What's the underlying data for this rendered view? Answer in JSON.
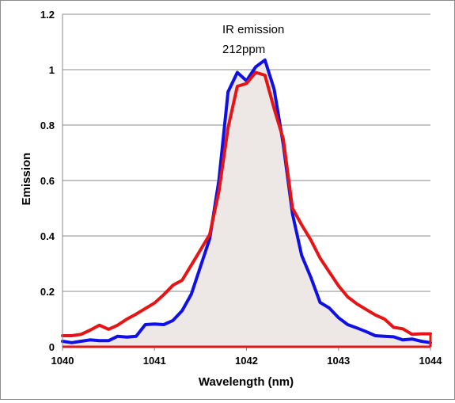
{
  "chart_data": {
    "type": "line",
    "title": "",
    "annotation": [
      "IR emission",
      "212ppm"
    ],
    "xlabel": "Wavelength (nm)",
    "ylabel": "Emission",
    "xlim": [
      1040,
      1044
    ],
    "ylim": [
      0,
      1.2
    ],
    "x_ticks": [
      "1040",
      "1041",
      "1042",
      "1043",
      "1044"
    ],
    "y_ticks": [
      "0",
      "0.2",
      "0.4",
      "0.6",
      "0.8",
      "1",
      "1.2"
    ],
    "grid": "horizontal",
    "legend": "none",
    "series": [
      {
        "color": "#1010e6",
        "filled": true,
        "fill_color": "#ede8e6",
        "points": [
          [
            1040.0,
            0.02
          ],
          [
            1040.1,
            0.015
          ],
          [
            1040.2,
            0.02
          ],
          [
            1040.3,
            0.025
          ],
          [
            1040.4,
            0.022
          ],
          [
            1040.5,
            0.022
          ],
          [
            1040.6,
            0.038
          ],
          [
            1040.7,
            0.035
          ],
          [
            1040.8,
            0.038
          ],
          [
            1040.9,
            0.08
          ],
          [
            1041.0,
            0.082
          ],
          [
            1041.1,
            0.08
          ],
          [
            1041.2,
            0.095
          ],
          [
            1041.3,
            0.13
          ],
          [
            1041.4,
            0.19
          ],
          [
            1041.5,
            0.29
          ],
          [
            1041.6,
            0.39
          ],
          [
            1041.7,
            0.6
          ],
          [
            1041.8,
            0.92
          ],
          [
            1041.9,
            0.99
          ],
          [
            1042.0,
            0.96
          ],
          [
            1042.1,
            1.01
          ],
          [
            1042.2,
            1.035
          ],
          [
            1042.3,
            0.93
          ],
          [
            1042.4,
            0.73
          ],
          [
            1042.5,
            0.48
          ],
          [
            1042.6,
            0.33
          ],
          [
            1042.7,
            0.25
          ],
          [
            1042.8,
            0.16
          ],
          [
            1042.9,
            0.14
          ],
          [
            1043.0,
            0.105
          ],
          [
            1043.1,
            0.08
          ],
          [
            1043.2,
            0.068
          ],
          [
            1043.3,
            0.055
          ],
          [
            1043.4,
            0.04
          ],
          [
            1043.5,
            0.038
          ],
          [
            1043.6,
            0.036
          ],
          [
            1043.7,
            0.025
          ],
          [
            1043.8,
            0.028
          ],
          [
            1043.9,
            0.02
          ],
          [
            1044.0,
            0.015
          ]
        ]
      },
      {
        "color": "#e61414",
        "filled": false,
        "points": [
          [
            1040.0,
            0.04
          ],
          [
            1040.1,
            0.04
          ],
          [
            1040.2,
            0.045
          ],
          [
            1040.3,
            0.06
          ],
          [
            1040.4,
            0.078
          ],
          [
            1040.5,
            0.063
          ],
          [
            1040.6,
            0.078
          ],
          [
            1040.7,
            0.1
          ],
          [
            1040.8,
            0.118
          ],
          [
            1040.9,
            0.138
          ],
          [
            1041.0,
            0.158
          ],
          [
            1041.1,
            0.188
          ],
          [
            1041.2,
            0.222
          ],
          [
            1041.3,
            0.24
          ],
          [
            1041.4,
            0.295
          ],
          [
            1041.5,
            0.35
          ],
          [
            1041.6,
            0.405
          ],
          [
            1041.7,
            0.56
          ],
          [
            1041.8,
            0.79
          ],
          [
            1041.9,
            0.94
          ],
          [
            1042.0,
            0.95
          ],
          [
            1042.1,
            0.99
          ],
          [
            1042.2,
            0.98
          ],
          [
            1042.3,
            0.86
          ],
          [
            1042.4,
            0.75
          ],
          [
            1042.5,
            0.5
          ],
          [
            1042.6,
            0.44
          ],
          [
            1042.7,
            0.385
          ],
          [
            1042.8,
            0.32
          ],
          [
            1042.9,
            0.27
          ],
          [
            1043.0,
            0.22
          ],
          [
            1043.1,
            0.18
          ],
          [
            1043.2,
            0.155
          ],
          [
            1043.3,
            0.135
          ],
          [
            1043.4,
            0.115
          ],
          [
            1043.5,
            0.1
          ],
          [
            1043.6,
            0.07
          ],
          [
            1043.7,
            0.065
          ],
          [
            1043.8,
            0.045
          ],
          [
            1043.9,
            0.047
          ],
          [
            1044.0,
            0.047
          ]
        ]
      }
    ]
  }
}
